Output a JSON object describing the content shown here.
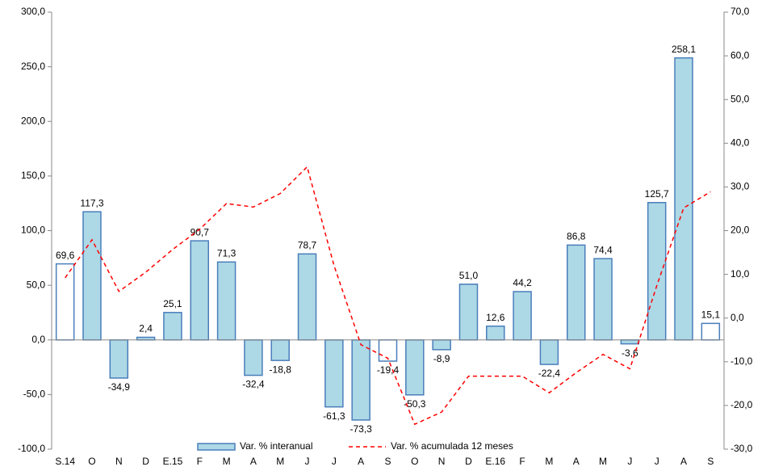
{
  "chart_data": {
    "type": "bar",
    "categories": [
      "S.14",
      "O",
      "N",
      "D",
      "E.15",
      "F",
      "M",
      "A",
      "M",
      "J",
      "J",
      "A",
      "S",
      "O",
      "N",
      "D",
      "E.16",
      "F",
      "M",
      "A",
      "M",
      "J",
      "J",
      "A",
      "S"
    ],
    "series": [
      {
        "name": "Var. % interanual",
        "type": "bar",
        "color": "#add8e6",
        "edge_color": "#4a7ebb",
        "colors": [
          "#ffffff",
          "#add8e6",
          "#add8e6",
          "#add8e6",
          "#add8e6",
          "#add8e6",
          "#add8e6",
          "#add8e6",
          "#add8e6",
          "#add8e6",
          "#add8e6",
          "#add8e6",
          "#ffffff",
          "#add8e6",
          "#add8e6",
          "#add8e6",
          "#add8e6",
          "#add8e6",
          "#add8e6",
          "#add8e6",
          "#add8e6",
          "#add8e6",
          "#add8e6",
          "#add8e6",
          "#ffffff"
        ],
        "values": [
          69.6,
          117.3,
          -34.9,
          2.4,
          25.1,
          90.7,
          71.3,
          -32.4,
          -18.8,
          78.7,
          -61.3,
          -73.3,
          -19.4,
          -50.3,
          -8.9,
          51.0,
          12.6,
          44.2,
          -22.4,
          86.8,
          74.4,
          -3.6,
          125.7,
          258.1,
          15.1
        ],
        "value_labels": [
          "69,6",
          "117,3",
          "-34,9",
          "2,4",
          "25,1",
          "90,7",
          "71,3",
          "-32,4",
          "-18,8",
          "78,7",
          "-61,3",
          "-73,3",
          "-19,4",
          "-50,3",
          "-8,9",
          "51,0",
          "12,6",
          "44,2",
          "-22,4",
          "86,8",
          "74,4",
          "-3,6",
          "125,7",
          "258,1",
          "15,1"
        ]
      },
      {
        "name": "Var. % acumulada 12 meses",
        "type": "line",
        "axis": "y2",
        "color": "#ff0000",
        "dashed": true,
        "values": [
          9.2,
          17.9,
          6.1,
          10.5,
          15.7,
          20.3,
          26.2,
          25.4,
          28.5,
          34.6,
          12.0,
          -6.1,
          -9.2,
          -24.3,
          -21.5,
          -13.3,
          -13.3,
          -13.3,
          -17.1,
          -12.5,
          -8.3,
          -11.6,
          7.4,
          25.2,
          28.9
        ]
      }
    ],
    "ylim": [
      -100,
      300
    ],
    "yticks": [
      {
        "value": -100,
        "label": "-100,0"
      },
      {
        "value": -50,
        "label": "-50,0"
      },
      {
        "value": 0,
        "label": "0,0"
      },
      {
        "value": 50,
        "label": "50,0"
      },
      {
        "value": 100,
        "label": "100,0"
      },
      {
        "value": 150,
        "label": "150,0"
      },
      {
        "value": 200,
        "label": "200,0"
      },
      {
        "value": 250,
        "label": "250,0"
      },
      {
        "value": 300,
        "label": "300,0"
      }
    ],
    "y2lim": [
      -30,
      70
    ],
    "y2ticks": [
      {
        "value": -30,
        "label": "-30,0"
      },
      {
        "value": -20,
        "label": "-20,0"
      },
      {
        "value": -10,
        "label": "-10,0"
      },
      {
        "value": 0,
        "label": "0,0"
      },
      {
        "value": 10,
        "label": "10,0"
      },
      {
        "value": 20,
        "label": "20,0"
      },
      {
        "value": 30,
        "label": "30,0"
      },
      {
        "value": 40,
        "label": "40,0"
      },
      {
        "value": 50,
        "label": "50,0"
      },
      {
        "value": 60,
        "label": "60,0"
      },
      {
        "value": 70,
        "label": "70,0"
      }
    ],
    "legend": "bottom"
  }
}
